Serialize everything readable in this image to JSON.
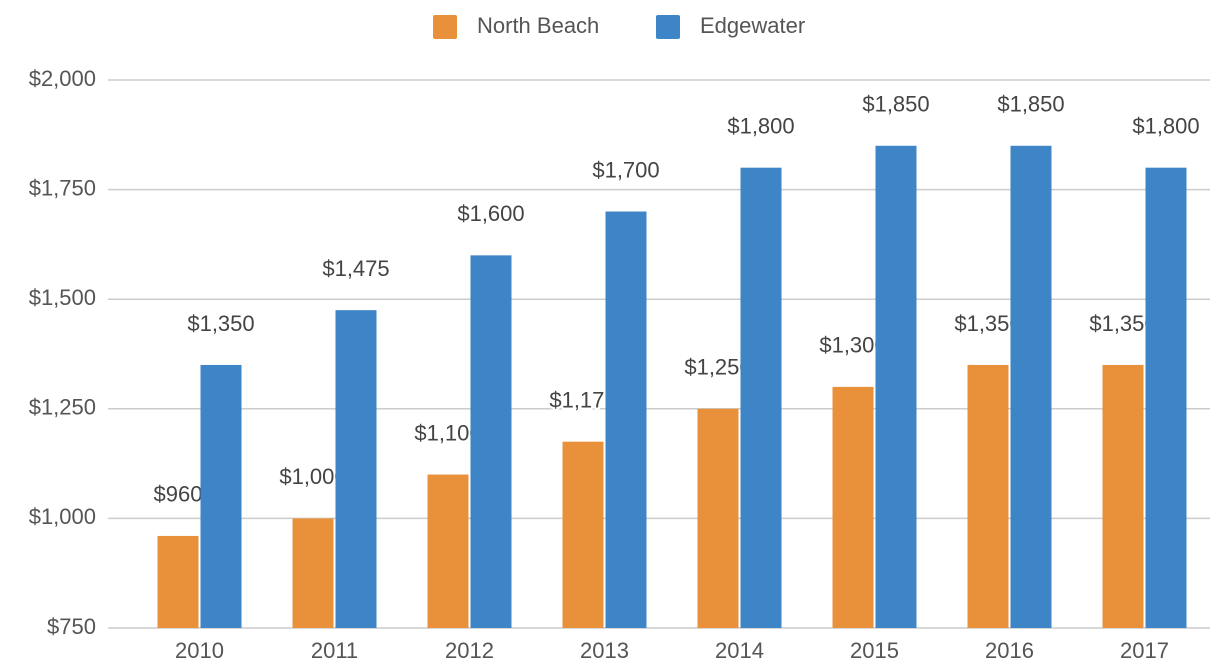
{
  "chart_data": {
    "type": "bar",
    "categories": [
      "2010",
      "2011",
      "2012",
      "2013",
      "2014",
      "2015",
      "2016",
      "2017"
    ],
    "series": [
      {
        "name": "North Beach",
        "color": "#e8913a",
        "values": [
          960,
          1000,
          1100,
          1175,
          1250,
          1300,
          1350,
          1350
        ],
        "value_labels": [
          "$960",
          "$1,000",
          "$1,100",
          "$1,175",
          "$1,250",
          "$1,300",
          "$1,350",
          "$1,350"
        ]
      },
      {
        "name": "Edgewater",
        "color": "#3d85c6",
        "values": [
          1350,
          1475,
          1600,
          1700,
          1800,
          1850,
          1850,
          1800
        ],
        "value_labels": [
          "$1,350",
          "$1,475",
          "$1,600",
          "$1,700",
          "$1,800",
          "$1,850",
          "$1,850",
          "$1,800"
        ]
      }
    ],
    "ylim": [
      750,
      2000
    ],
    "yticks": [
      {
        "value": 750,
        "label": "$750"
      },
      {
        "value": 1000,
        "label": "$1,000"
      },
      {
        "value": 1250,
        "label": "$1,250"
      },
      {
        "value": 1500,
        "label": "$1,500"
      },
      {
        "value": 1750,
        "label": "$1,750"
      },
      {
        "value": 2000,
        "label": "$2,000"
      }
    ],
    "grid": true,
    "legend": "top"
  }
}
